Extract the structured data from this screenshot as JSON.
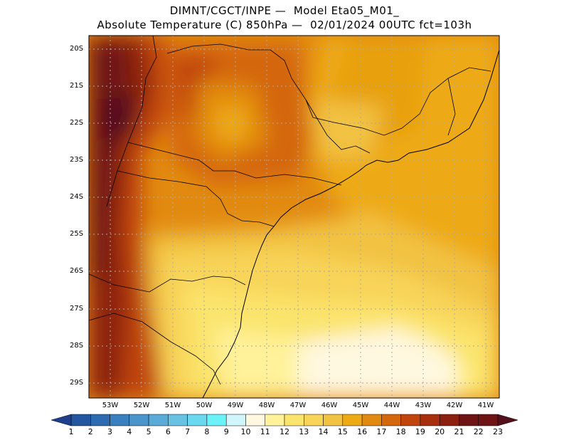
{
  "title_line1": "DIMNT/CGCT/INPE —  Model Eta05_M01_",
  "title_line2": "Absolute Temperature (C) 850hPa —  02/01/2024 00UTC fct=103h",
  "lat_labels": [
    "20S",
    "21S",
    "22S",
    "23S",
    "24S",
    "25S",
    "26S",
    "27S",
    "28S",
    "29S"
  ],
  "lon_labels": [
    "53W",
    "52W",
    "51W",
    "50W",
    "49W",
    "48W",
    "47W",
    "46W",
    "45W",
    "44W",
    "43W",
    "42W",
    "41W"
  ],
  "colorbar": {
    "labels": [
      "1",
      "2",
      "3",
      "4",
      "5",
      "6",
      "7",
      "8",
      "9",
      "10",
      "11",
      "12",
      "13",
      "14",
      "15",
      "16",
      "17",
      "18",
      "19",
      "20",
      "21",
      "22",
      "23"
    ],
    "colors": [
      "#1e3f8c",
      "#2456a0",
      "#2e6aaf",
      "#3a80bf",
      "#4a95cb",
      "#5aabd8",
      "#68c2e4",
      "#6ad8ef",
      "#6af2f8",
      "#d0f6fb",
      "#fff8e0",
      "#fff29a",
      "#fbe46c",
      "#f8d458",
      "#f2c242",
      "#eeaa14",
      "#e28a10",
      "#d4660c",
      "#c0440c",
      "#a82e10",
      "#8c2010",
      "#6e1414",
      "#54101a"
    ]
  },
  "colors": {
    "ocean_light": "#fff6d8",
    "land_dark": "#7a1a14"
  }
}
